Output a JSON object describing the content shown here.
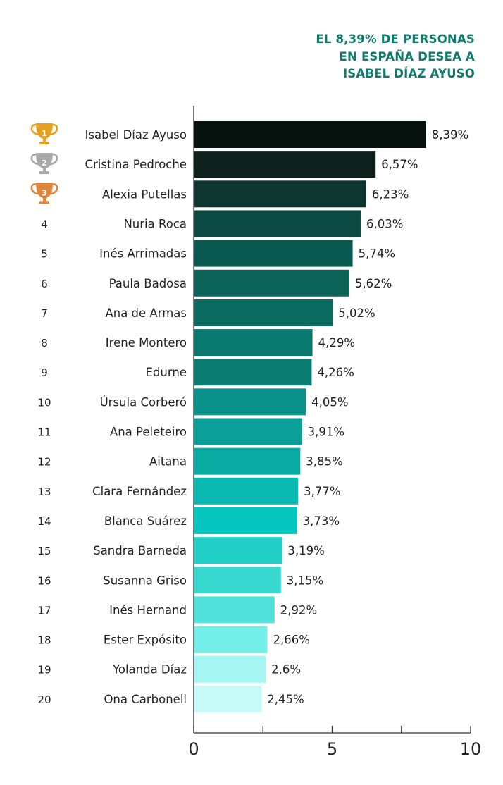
{
  "title_lines": [
    "EL 8,39% DE PERSONAS",
    "EN ESPAÑA DESEA A",
    "ISABEL DÍAZ AYUSO"
  ],
  "chart_data": {
    "type": "bar",
    "orientation": "horizontal",
    "title": "EL 8,39% DE PERSONAS EN ESPAÑA DESEA A ISABEL DÍAZ AYUSO",
    "xlabel": "",
    "ylabel": "",
    "xlim": [
      0,
      10
    ],
    "x_ticks": [
      0,
      2.5,
      5,
      7.5,
      10
    ],
    "x_tick_labels": [
      "0",
      "",
      "5",
      "",
      "10"
    ],
    "grid": false,
    "legend": "none",
    "ranks": [
      "1",
      "2",
      "3",
      "4",
      "5",
      "6",
      "7",
      "8",
      "9",
      "10",
      "11",
      "12",
      "13",
      "14",
      "15",
      "16",
      "17",
      "18",
      "19",
      "20"
    ],
    "rank_icons": [
      "gold-trophy-icon",
      "silver-trophy-icon",
      "bronze-trophy-icon"
    ],
    "trophy_colors": [
      "#e6a11f",
      "#a8a8a8",
      "#e0843a"
    ],
    "categories": [
      "Isabel Díaz Ayuso",
      "Cristina Pedroche",
      "Alexia Putellas",
      "Nuria Roca",
      "Inés Arrimadas",
      "Paula Badosa",
      "Ana de Armas",
      "Irene Montero",
      "Edurne",
      "Úrsula Corberó",
      "Ana Peleteiro",
      "Aitana",
      "Clara Fernández",
      "Blanca Suárez",
      "Sandra Barneda",
      "Susanna Griso",
      "Inés Hernand",
      "Ester Expósito",
      "Yolanda Díaz",
      "Ona Carbonell"
    ],
    "values": [
      8.39,
      6.57,
      6.23,
      6.03,
      5.74,
      5.62,
      5.02,
      4.29,
      4.26,
      4.05,
      3.91,
      3.85,
      3.77,
      3.73,
      3.19,
      3.15,
      2.92,
      2.66,
      2.6,
      2.45
    ],
    "value_labels": [
      "8,39%",
      "6,57%",
      "6,23%",
      "6,03%",
      "5,74%",
      "5,62%",
      "5,02%",
      "4,29%",
      "4,26%",
      "4,05%",
      "3,91%",
      "3,85%",
      "3,77%",
      "3,73%",
      "3,19%",
      "3,15%",
      "2,92%",
      "2,66%",
      "2,6%",
      "2,45%"
    ],
    "bar_colors": [
      "#07120f",
      "#0d201c",
      "#0e3530",
      "#0b4a42",
      "#0b5a51",
      "#0b6358",
      "#0b6c62",
      "#0a7970",
      "#0a7c72",
      "#0a9189",
      "#0a9f97",
      "#09aba3",
      "#0ab9b1",
      "#06c7bf",
      "#22d0c8",
      "#37d8d0",
      "#50e2da",
      "#73eee8",
      "#a6f7f3",
      "#c7fbf9"
    ]
  }
}
